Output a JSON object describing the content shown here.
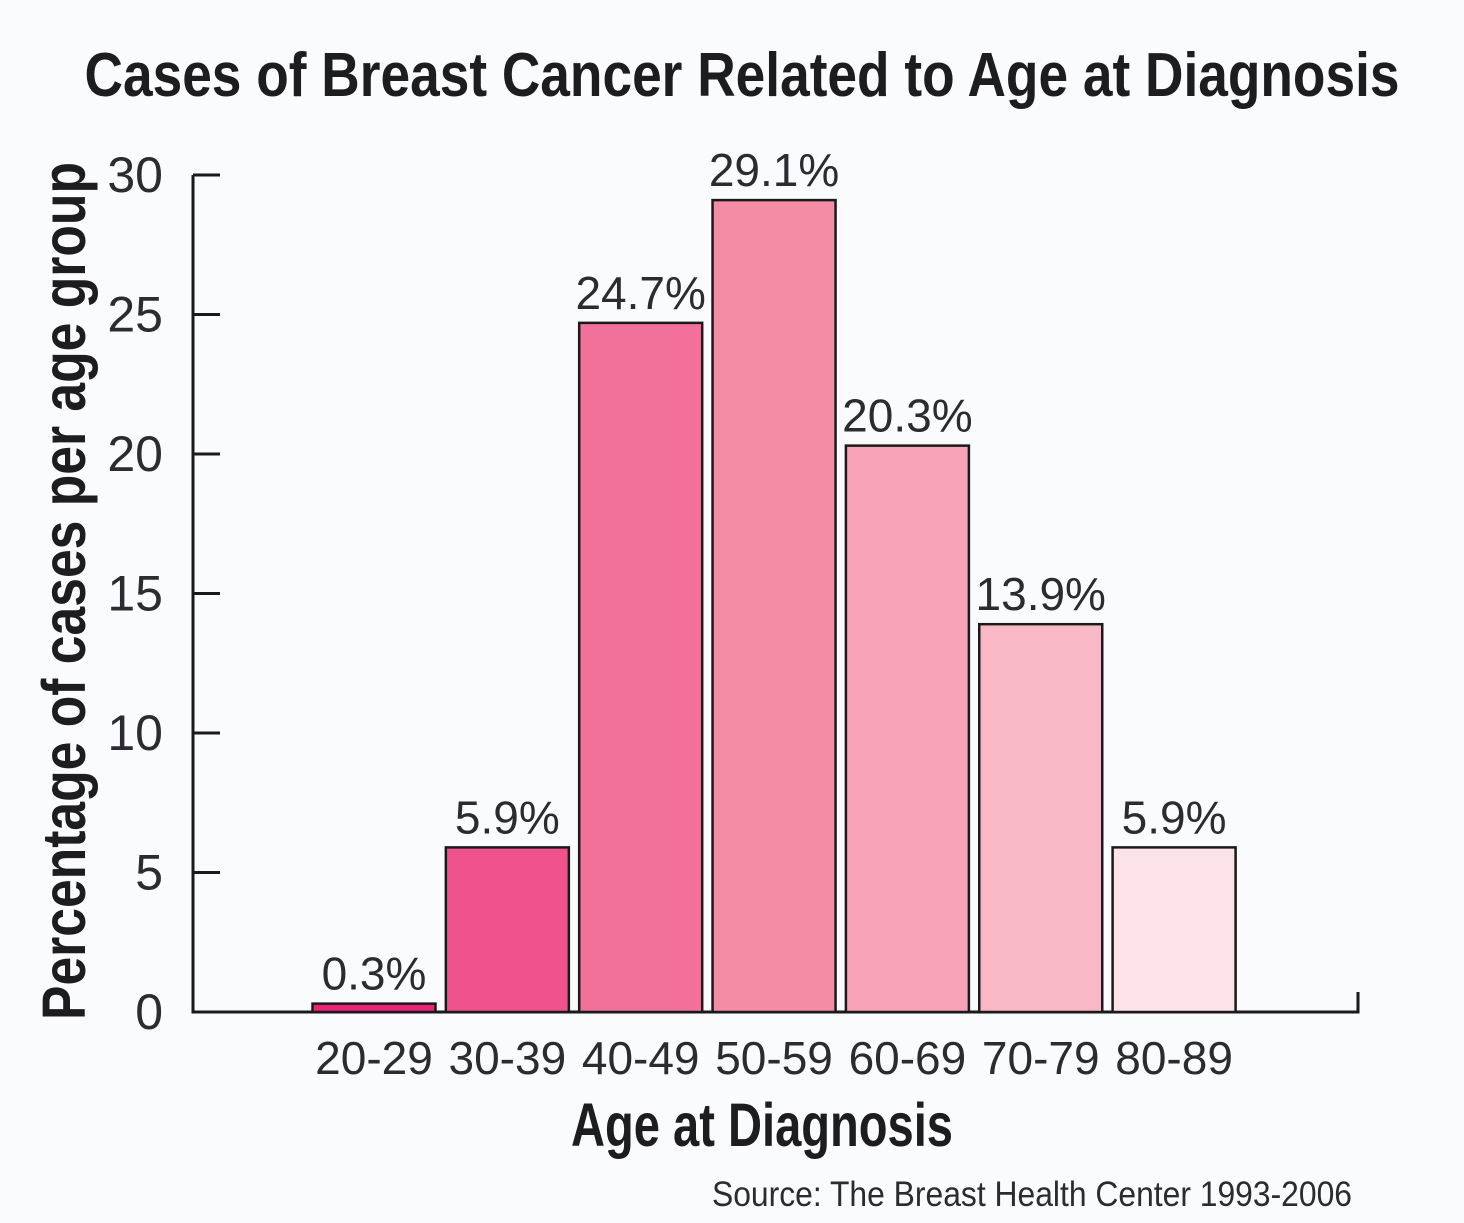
{
  "background_color": "#fafbfd",
  "axis_color": "#1a1a1a",
  "text_color": "#2b2b30",
  "chart_data": {
    "type": "bar",
    "title": "Cases of Breast Cancer Related to Age at Diagnosis",
    "xlabel": "Age at Diagnosis",
    "ylabel": "Percentage of cases per age group",
    "source": "Source: The Breast Health Center 1993-2006",
    "categories": [
      "20-29",
      "30-39",
      "40-49",
      "50-59",
      "60-69",
      "70-79",
      "80-89"
    ],
    "values": [
      0.3,
      5.9,
      24.7,
      29.1,
      20.3,
      13.9,
      5.9
    ],
    "value_labels": [
      "0.3%",
      "5.9%",
      "24.7%",
      "29.1%",
      "20.3%",
      "13.9%",
      "5.9%"
    ],
    "bar_colors": [
      "#EC2379",
      "#F0538C",
      "#F2719B",
      "#F58CA6",
      "#F7A2B6",
      "#F8B8C5",
      "#FCE2E9"
    ],
    "ylim": [
      0,
      30
    ],
    "yticks": [
      0,
      5,
      10,
      15,
      20,
      25,
      30
    ],
    "grid": false,
    "legend_position": "none"
  }
}
